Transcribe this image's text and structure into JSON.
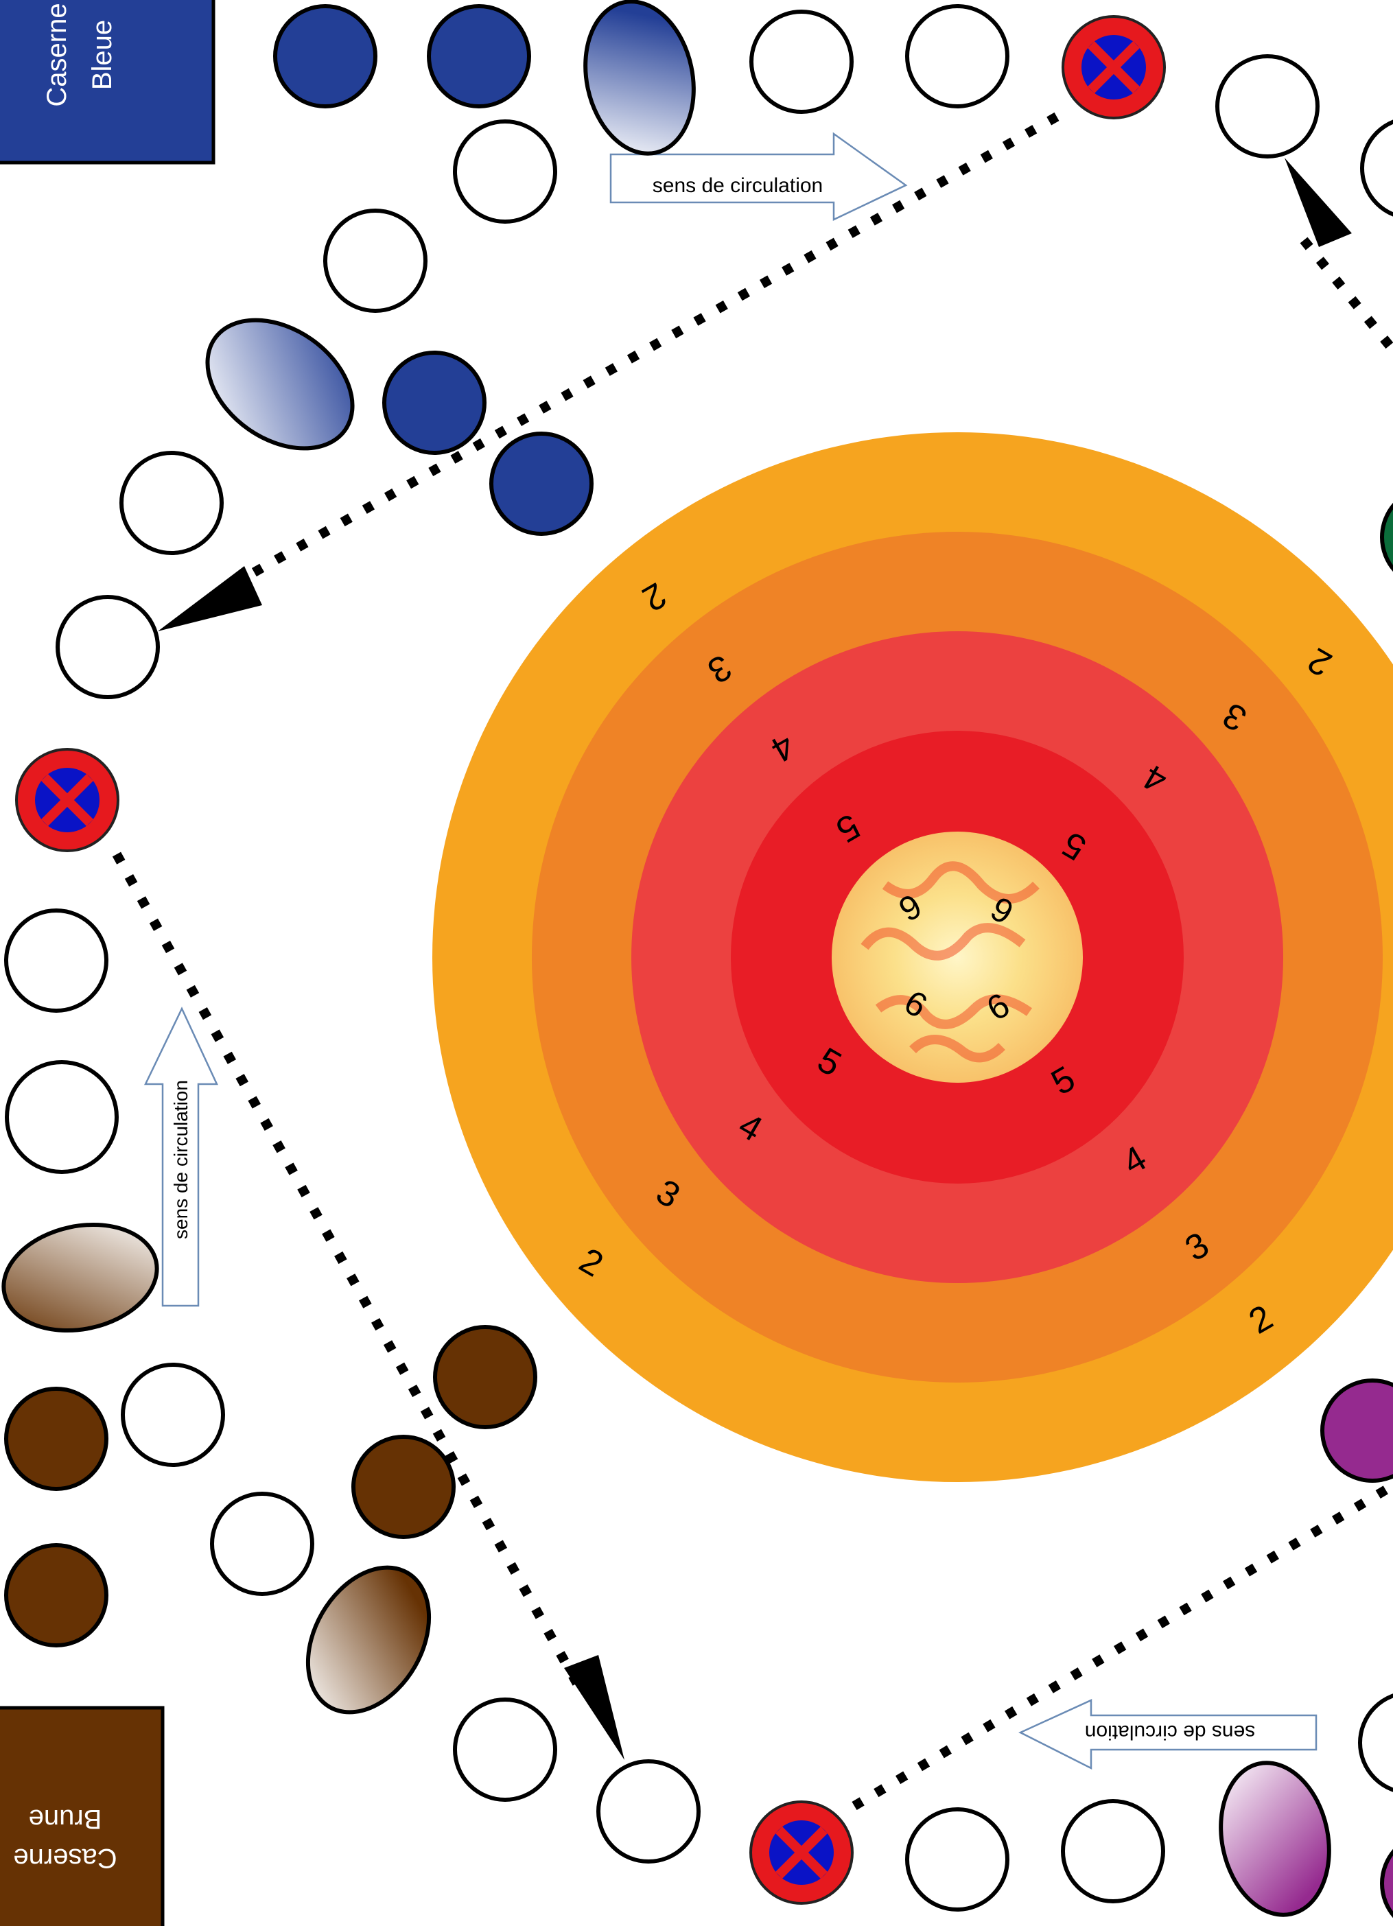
{
  "board": {
    "barracks": {
      "blue": {
        "line1": "Caserne",
        "line2": "Bleue",
        "color": "#233f96"
      },
      "brown": {
        "line1": "Caserne",
        "line2": "Brune",
        "color": "#663204"
      }
    },
    "direction_label": "sens de circulation",
    "target": {
      "ring_scores": [
        "2",
        "3",
        "4",
        "5",
        "6"
      ],
      "ring_colors": [
        "#f6a41f",
        "#ef8326",
        "#ec4140",
        "#e81d26",
        "#fbe8a0"
      ]
    },
    "team_colors": {
      "blue": "#233f96",
      "brown": "#663204",
      "green": "#0b6d3b",
      "purple": "#952a8f"
    },
    "no_stopping_colors": {
      "ring": "#e6191e",
      "fill": "#0a13c6"
    }
  }
}
